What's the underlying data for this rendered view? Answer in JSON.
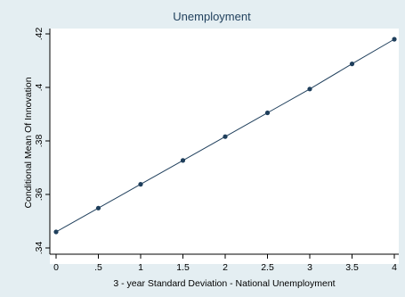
{
  "chart_data": {
    "type": "line",
    "title": "Unemployment",
    "xlabel": "3 - year Standard Deviation - National Unemployment",
    "ylabel": "Conditional Mean Of Innovation",
    "x": [
      0,
      0.5,
      1,
      1.5,
      2,
      2.5,
      3,
      3.5,
      4
    ],
    "y": [
      0.346,
      0.3549,
      0.3638,
      0.3727,
      0.3816,
      0.3905,
      0.3994,
      0.4088,
      0.418
    ],
    "xlim": [
      0,
      4
    ],
    "ylim": [
      0.34,
      0.42
    ],
    "xticks": [
      0,
      0.5,
      1,
      1.5,
      2,
      2.5,
      3,
      3.5,
      4
    ],
    "xtick_labels": [
      "0",
      ".5",
      "1",
      "1.5",
      "2",
      "2.5",
      "3",
      "3.5",
      "4"
    ],
    "yticks": [
      0.34,
      0.36,
      0.38,
      0.4,
      0.42
    ],
    "ytick_labels": [
      ".34",
      ".36",
      ".38",
      ".4",
      ".42"
    ],
    "grid": false,
    "colors": {
      "background": "#e4eef2",
      "plot_area": "#ffffff",
      "series": "#1f3f5c"
    }
  }
}
